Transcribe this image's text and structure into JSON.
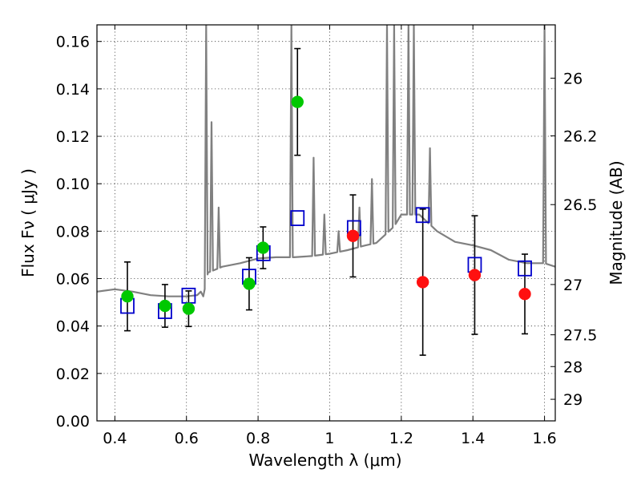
{
  "chart_data": {
    "type": "scatter",
    "xlabel": "Wavelength  λ (μm)",
    "ylabel": "Flux  Fν  ( μJy )",
    "y2label": "Magnitude (AB)",
    "xlim": [
      0.35,
      1.63
    ],
    "ylim": [
      0.0,
      0.167
    ],
    "grid": true,
    "x_ticks": [
      0.4,
      0.6,
      0.8,
      1.0,
      1.2,
      1.4,
      1.6
    ],
    "x_tick_labels": [
      "0.4",
      "0.6",
      "0.8",
      "1",
      "1.2",
      "1.4",
      "1.6"
    ],
    "y_ticks": [
      0.0,
      0.02,
      0.04,
      0.06,
      0.08,
      0.1,
      0.12,
      0.14,
      0.16
    ],
    "y_tick_labels": [
      "0.00",
      "0.02",
      "0.04",
      "0.06",
      "0.08",
      "0.10",
      "0.12",
      "0.14",
      "0.16"
    ],
    "mag_ticks": [
      {
        "flux": 0.1445,
        "label": "26"
      },
      {
        "flux": 0.1202,
        "label": "26.2"
      },
      {
        "flux": 0.0912,
        "label": "26.5"
      },
      {
        "flux": 0.0575,
        "label": "27"
      },
      {
        "flux": 0.0363,
        "label": "27.5"
      },
      {
        "flux": 0.0229,
        "label": "28"
      },
      {
        "flux": 0.0091,
        "label": "29"
      }
    ],
    "colors": {
      "model": "#808080",
      "green_points": "#00c800",
      "red_points": "#ff1010",
      "model_boxes": "#0000cc",
      "error_bars": "#000000"
    },
    "series": [
      {
        "name": "Model spectrum",
        "kind": "line",
        "continuum": [
          [
            0.35,
            0.0545
          ],
          [
            0.4,
            0.0555
          ],
          [
            0.45,
            0.0545
          ],
          [
            0.5,
            0.053
          ],
          [
            0.55,
            0.0525
          ],
          [
            0.6,
            0.0525
          ],
          [
            0.63,
            0.053
          ],
          [
            0.64,
            0.0545
          ],
          [
            0.647,
            0.0525
          ],
          [
            0.66,
            0.0625
          ],
          [
            0.7,
            0.065
          ],
          [
            0.75,
            0.0665
          ],
          [
            0.8,
            0.0685
          ],
          [
            0.85,
            0.069
          ],
          [
            0.9,
            0.069
          ],
          [
            0.95,
            0.0695
          ],
          [
            1.0,
            0.0705
          ],
          [
            1.05,
            0.072
          ],
          [
            1.1,
            0.074
          ],
          [
            1.13,
            0.075
          ],
          [
            1.18,
            0.082
          ],
          [
            1.2,
            0.087
          ],
          [
            1.25,
            0.087
          ],
          [
            1.3,
            0.08
          ],
          [
            1.35,
            0.0755
          ],
          [
            1.4,
            0.074
          ],
          [
            1.45,
            0.072
          ],
          [
            1.5,
            0.068
          ],
          [
            1.55,
            0.0665
          ],
          [
            1.6,
            0.0665
          ],
          [
            1.63,
            0.065
          ]
        ],
        "emission_lines": [
          {
            "x": 0.655,
            "peak": 0.167
          },
          {
            "x": 0.67,
            "peak": 0.126
          },
          {
            "x": 0.69,
            "peak": 0.09
          },
          {
            "x": 0.893,
            "peak": 0.167
          },
          {
            "x": 0.955,
            "peak": 0.111
          },
          {
            "x": 0.985,
            "peak": 0.087
          },
          {
            "x": 1.025,
            "peak": 0.08
          },
          {
            "x": 1.083,
            "peak": 0.09
          },
          {
            "x": 1.118,
            "peak": 0.102
          },
          {
            "x": 1.16,
            "peak": 0.167
          },
          {
            "x": 1.18,
            "peak": 0.167
          },
          {
            "x": 1.22,
            "peak": 0.167
          },
          {
            "x": 1.235,
            "peak": 0.167
          },
          {
            "x": 1.28,
            "peak": 0.115
          },
          {
            "x": 1.6,
            "peak": 0.167
          }
        ]
      },
      {
        "name": "Observed (green)",
        "kind": "points",
        "points": [
          {
            "x": 0.435,
            "y": 0.0525,
            "err": 0.0145
          },
          {
            "x": 0.54,
            "y": 0.0485,
            "err": 0.009
          },
          {
            "x": 0.606,
            "y": 0.0473,
            "err": 0.0075
          },
          {
            "x": 0.775,
            "y": 0.0578,
            "err": 0.011
          },
          {
            "x": 0.814,
            "y": 0.073,
            "err": 0.0088
          },
          {
            "x": 0.91,
            "y": 0.1345,
            "err": 0.0225
          }
        ]
      },
      {
        "name": "Observed (red)",
        "kind": "points",
        "points": [
          {
            "x": 1.065,
            "y": 0.078,
            "err": 0.0173
          },
          {
            "x": 1.26,
            "y": 0.0585,
            "err": 0.0308
          },
          {
            "x": 1.405,
            "y": 0.0615,
            "err": 0.025
          },
          {
            "x": 1.545,
            "y": 0.0535,
            "err": 0.0168
          }
        ]
      },
      {
        "name": "Model photometry",
        "kind": "boxes",
        "points": [
          {
            "x": 0.435,
            "y": 0.0485
          },
          {
            "x": 0.54,
            "y": 0.0463
          },
          {
            "x": 0.606,
            "y": 0.0528
          },
          {
            "x": 0.775,
            "y": 0.0608
          },
          {
            "x": 0.815,
            "y": 0.0707
          },
          {
            "x": 0.91,
            "y": 0.0855
          },
          {
            "x": 1.068,
            "y": 0.0813
          },
          {
            "x": 1.26,
            "y": 0.0868
          },
          {
            "x": 1.405,
            "y": 0.0658
          },
          {
            "x": 1.545,
            "y": 0.0643
          }
        ]
      }
    ]
  }
}
